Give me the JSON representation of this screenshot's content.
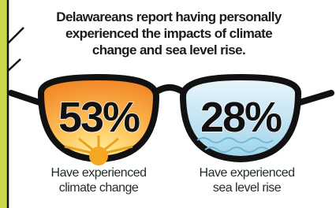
{
  "title_lines": [
    "Delawareans report having personally",
    "experienced the impacts of climate",
    "change and sea level rise."
  ],
  "stats": [
    {
      "value": "53%",
      "label_lines": [
        "Have experienced",
        "climate change"
      ]
    },
    {
      "value": "28%",
      "label_lines": [
        "Have experienced",
        "sea level rise"
      ]
    }
  ]
}
